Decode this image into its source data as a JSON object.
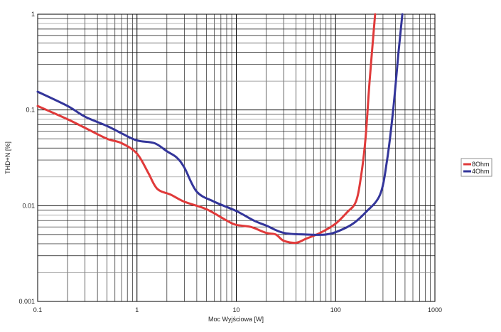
{
  "chart_data": {
    "type": "line",
    "title": "",
    "xlabel": "Moc Wyjściowa [W]",
    "ylabel": "THD+N [%]",
    "xscale": "log",
    "yscale": "log",
    "xlim": [
      0.1,
      1000
    ],
    "ylim": [
      0.001,
      1
    ],
    "grid": true,
    "legend_position": "right",
    "x_ticks": [
      "0.1",
      "1",
      "10",
      "100",
      "1000"
    ],
    "y_ticks": [
      "1",
      "0.1",
      "0.01",
      "0.001"
    ],
    "series": [
      {
        "name": "8Ohm",
        "color": "#e03a3a",
        "points": [
          [
            0.1,
            0.11
          ],
          [
            0.2,
            0.08
          ],
          [
            0.3,
            0.065
          ],
          [
            0.5,
            0.05
          ],
          [
            0.7,
            0.045
          ],
          [
            1,
            0.035
          ],
          [
            1.3,
            0.022
          ],
          [
            1.6,
            0.015
          ],
          [
            2.2,
            0.013
          ],
          [
            3,
            0.011
          ],
          [
            5,
            0.0092
          ],
          [
            8,
            0.007
          ],
          [
            10,
            0.0063
          ],
          [
            14,
            0.006
          ],
          [
            20,
            0.0052
          ],
          [
            25,
            0.005
          ],
          [
            30,
            0.0043
          ],
          [
            40,
            0.0041
          ],
          [
            50,
            0.0045
          ],
          [
            70,
            0.0052
          ],
          [
            100,
            0.0065
          ],
          [
            130,
            0.0085
          ],
          [
            160,
            0.011
          ],
          [
            180,
            0.02
          ],
          [
            200,
            0.05
          ],
          [
            220,
            0.2
          ],
          [
            250,
            1
          ]
        ]
      },
      {
        "name": "4Ohm",
        "color": "#33359a",
        "points": [
          [
            0.1,
            0.155
          ],
          [
            0.2,
            0.11
          ],
          [
            0.3,
            0.085
          ],
          [
            0.5,
            0.068
          ],
          [
            0.7,
            0.057
          ],
          [
            1,
            0.048
          ],
          [
            1.5,
            0.045
          ],
          [
            2,
            0.037
          ],
          [
            2.5,
            0.032
          ],
          [
            3,
            0.025
          ],
          [
            4,
            0.014
          ],
          [
            6,
            0.011
          ],
          [
            10,
            0.0088
          ],
          [
            15,
            0.007
          ],
          [
            20,
            0.0062
          ],
          [
            30,
            0.0052
          ],
          [
            50,
            0.005
          ],
          [
            80,
            0.005
          ],
          [
            110,
            0.0055
          ],
          [
            150,
            0.0065
          ],
          [
            200,
            0.0085
          ],
          [
            280,
            0.013
          ],
          [
            330,
            0.03
          ],
          [
            380,
            0.1
          ],
          [
            430,
            0.4
          ],
          [
            470,
            1
          ]
        ]
      }
    ]
  }
}
